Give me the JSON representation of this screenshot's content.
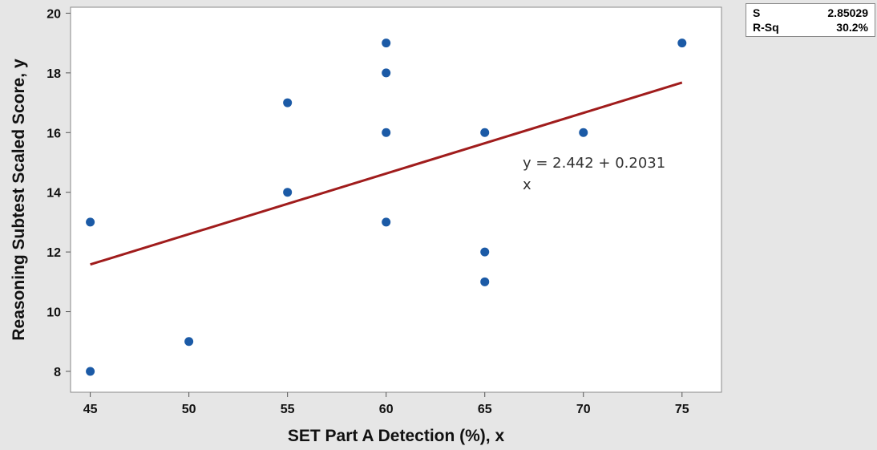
{
  "chart_data": {
    "type": "scatter",
    "title": "",
    "xlabel": "SET Part A Detection (%), x",
    "ylabel": "Reasoning Subtest Scaled Score, y",
    "xlim": [
      44,
      77
    ],
    "ylim": [
      7.3,
      20.2
    ],
    "xticks": [
      45,
      50,
      55,
      60,
      65,
      70,
      75
    ],
    "yticks": [
      8,
      10,
      12,
      14,
      16,
      18,
      20
    ],
    "grid": false,
    "points": [
      {
        "x": 45,
        "y": 13
      },
      {
        "x": 45,
        "y": 8
      },
      {
        "x": 50,
        "y": 9
      },
      {
        "x": 55,
        "y": 17
      },
      {
        "x": 55,
        "y": 14
      },
      {
        "x": 60,
        "y": 19
      },
      {
        "x": 60,
        "y": 18
      },
      {
        "x": 60,
        "y": 16
      },
      {
        "x": 60,
        "y": 13
      },
      {
        "x": 65,
        "y": 16
      },
      {
        "x": 65,
        "y": 12
      },
      {
        "x": 65,
        "y": 11
      },
      {
        "x": 70,
        "y": 16
      },
      {
        "x": 75,
        "y": 19
      }
    ],
    "fit": {
      "intercept": 2.442,
      "slope": 0.2031,
      "x_range": [
        45,
        75
      ]
    },
    "equation_text": "y = 2.442 + 0.2031",
    "equation_text_line2": "x",
    "colors": {
      "point": "#1b5aa6",
      "fit_line": "#a01c1c",
      "background": "#e6e6e6",
      "plot_area": "#ffffff"
    }
  },
  "stats": {
    "s_label": "S",
    "s_value": "2.85029",
    "rsq_label": "R-Sq",
    "rsq_value": "30.2%"
  }
}
